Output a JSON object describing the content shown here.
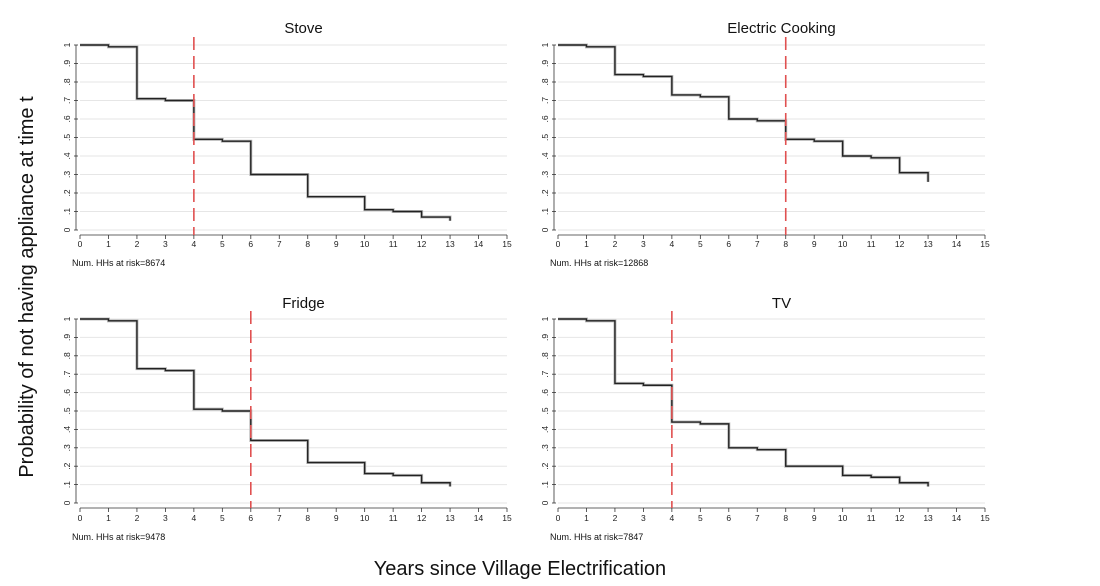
{
  "figure": {
    "ylabel": "Probability of not having appliance at time t",
    "xlabel": "Years since Village Electrification"
  },
  "chart_data": [
    {
      "type": "line",
      "title": "Stove",
      "x": [
        0,
        1,
        2,
        3,
        4,
        5,
        6,
        7,
        8,
        9,
        10,
        11,
        12,
        13
      ],
      "values": [
        1.0,
        0.99,
        0.71,
        0.7,
        0.49,
        0.48,
        0.3,
        0.3,
        0.18,
        0.18,
        0.11,
        0.1,
        0.07,
        0.05
      ],
      "reference_line_x": 4,
      "xlim": [
        0,
        15
      ],
      "ylim": [
        0,
        1
      ],
      "x_ticks": [
        "0",
        "1",
        "2",
        "3",
        "4",
        "5",
        "6",
        "7",
        "8",
        "9",
        "10",
        "11",
        "12",
        "13",
        "14",
        "15"
      ],
      "y_ticks": [
        "0",
        ".1",
        ".2",
        ".3",
        ".4",
        ".5",
        ".6",
        ".7",
        ".8",
        ".9",
        "1"
      ],
      "note": "Num. HHs at risk=8674",
      "grid": true
    },
    {
      "type": "line",
      "title": "Electric Cooking",
      "x": [
        0,
        1,
        2,
        3,
        4,
        5,
        6,
        7,
        8,
        9,
        10,
        11,
        12,
        13
      ],
      "values": [
        1.0,
        0.99,
        0.84,
        0.83,
        0.73,
        0.72,
        0.6,
        0.59,
        0.49,
        0.48,
        0.4,
        0.39,
        0.31,
        0.26
      ],
      "reference_line_x": 8,
      "xlim": [
        0,
        15
      ],
      "ylim": [
        0,
        1
      ],
      "x_ticks": [
        "0",
        "1",
        "2",
        "3",
        "4",
        "5",
        "6",
        "7",
        "8",
        "9",
        "10",
        "11",
        "12",
        "13",
        "14",
        "15"
      ],
      "y_ticks": [
        "0",
        ".1",
        ".2",
        ".3",
        ".4",
        ".5",
        ".6",
        ".7",
        ".8",
        ".9",
        "1"
      ],
      "note": "Num. HHs at risk=12868",
      "grid": true
    },
    {
      "type": "line",
      "title": "Fridge",
      "x": [
        0,
        1,
        2,
        3,
        4,
        5,
        6,
        7,
        8,
        9,
        10,
        11,
        12,
        13
      ],
      "values": [
        1.0,
        0.99,
        0.73,
        0.72,
        0.51,
        0.5,
        0.34,
        0.34,
        0.22,
        0.22,
        0.16,
        0.15,
        0.11,
        0.09
      ],
      "reference_line_x": 6,
      "xlim": [
        0,
        15
      ],
      "ylim": [
        0,
        1
      ],
      "x_ticks": [
        "0",
        "1",
        "2",
        "3",
        "4",
        "5",
        "6",
        "7",
        "8",
        "9",
        "10",
        "11",
        "12",
        "13",
        "14",
        "15"
      ],
      "y_ticks": [
        "0",
        ".1",
        ".2",
        ".3",
        ".4",
        ".5",
        ".6",
        ".7",
        ".8",
        ".9",
        "1"
      ],
      "note": "Num. HHs at risk=9478",
      "grid": true
    },
    {
      "type": "line",
      "title": "TV",
      "x": [
        0,
        1,
        2,
        3,
        4,
        5,
        6,
        7,
        8,
        9,
        10,
        11,
        12,
        13
      ],
      "values": [
        1.0,
        0.99,
        0.65,
        0.64,
        0.44,
        0.43,
        0.3,
        0.29,
        0.2,
        0.2,
        0.15,
        0.14,
        0.11,
        0.09
      ],
      "reference_line_x": 4,
      "xlim": [
        0,
        15
      ],
      "ylim": [
        0,
        1
      ],
      "x_ticks": [
        "0",
        "1",
        "2",
        "3",
        "4",
        "5",
        "6",
        "7",
        "8",
        "9",
        "10",
        "11",
        "12",
        "13",
        "14",
        "15"
      ],
      "y_ticks": [
        "0",
        ".1",
        ".2",
        ".3",
        ".4",
        ".5",
        ".6",
        ".7",
        ".8",
        ".9",
        "1"
      ],
      "note": "Num. HHs at risk=7847",
      "grid": true
    }
  ],
  "colors": {
    "line": "#222222",
    "shadow": "#bdbdbd",
    "reference": "#e05050",
    "grid": "#e6e6e6"
  }
}
